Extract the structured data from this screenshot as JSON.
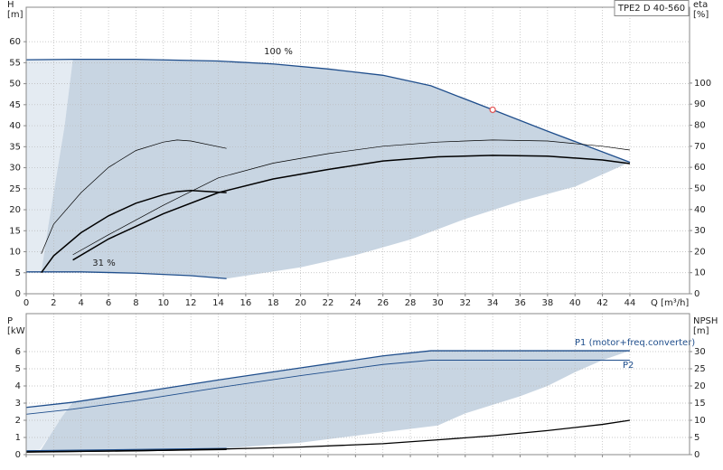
{
  "chart_data": [
    {
      "type": "line",
      "title": "TPE2 D 40-560",
      "xlabel": "Q [m³/h]",
      "ylabel": "H",
      "yunit": "[m]",
      "y2label": "eta",
      "y2unit": "[%]",
      "xlim": [
        0,
        48.35
      ],
      "xticks": [
        0,
        2,
        4,
        6,
        8,
        10,
        12,
        14,
        16,
        18,
        20,
        22,
        24,
        26,
        28,
        30,
        32,
        34,
        36,
        38,
        40,
        42,
        44
      ],
      "ylim": [
        0,
        68.2
      ],
      "yticks": [
        0,
        5,
        10,
        15,
        20,
        25,
        30,
        35,
        40,
        45,
        50,
        55,
        60
      ],
      "y2lim": [
        0,
        136
      ],
      "y2ticks": [
        0,
        10,
        20,
        30,
        40,
        50,
        60,
        70,
        80,
        90,
        100
      ],
      "grid": true,
      "areas": [
        {
          "color": "#e4ebf2",
          "x": [
            0,
            3.4,
            2.8,
            2.2,
            1.6,
            1.1,
            0
          ],
          "values": [
            55.7,
            55.7,
            40,
            28,
            16,
            5.2,
            5.2
          ]
        },
        {
          "color": "#c8d5e2",
          "x": [
            3.4,
            8,
            14,
            18,
            22,
            26,
            29.5,
            34,
            38,
            44,
            40,
            36,
            32,
            28,
            24,
            20,
            14.6,
            12,
            8,
            4,
            1.1,
            1.6,
            2.2,
            2.8
          ],
          "values": [
            55.8,
            55.8,
            55.4,
            54.7,
            53.5,
            52,
            49.5,
            43.8,
            38.7,
            31.3,
            25.5,
            22,
            17.8,
            12.9,
            9.2,
            6.3,
            3.6,
            4.3,
            4.9,
            5.2,
            5.2,
            16,
            28,
            40
          ]
        }
      ],
      "series": [
        {
          "name": "100 %",
          "color": "#1f4e8c",
          "line_width": 1.3,
          "x": [
            0,
            3.4,
            8,
            14,
            18,
            22,
            26,
            29.5,
            34,
            38,
            44
          ],
          "values": [
            55.7,
            55.8,
            55.8,
            55.4,
            54.7,
            53.5,
            52,
            49.5,
            43.8,
            38.7,
            31.3
          ]
        },
        {
          "name": "31 %",
          "color": "#1f4e8c",
          "line_width": 1.3,
          "x": [
            0,
            1,
            4,
            8,
            12,
            14.6
          ],
          "values": [
            5.2,
            5.2,
            5.2,
            4.9,
            4.3,
            3.6
          ]
        },
        {
          "color": "#000000",
          "line_width": 0.7,
          "axis": "y2",
          "x": [
            1.1,
            2,
            4,
            6,
            8,
            10,
            11,
            12,
            14.6
          ],
          "values": [
            19,
            33,
            48,
            60,
            68,
            72,
            73,
            72.5,
            69
          ]
        },
        {
          "color": "#000000",
          "line_width": 1.5,
          "axis": "y2",
          "x": [
            1.1,
            2,
            4,
            6,
            8,
            10,
            11,
            12,
            14.6
          ],
          "values": [
            10,
            18,
            29,
            37,
            43,
            47,
            48.5,
            49,
            48
          ]
        },
        {
          "color": "#000000",
          "line_width": 0.7,
          "axis": "y2",
          "x": [
            3.4,
            6,
            10,
            14,
            18,
            22,
            26,
            30,
            34,
            38,
            42,
            44
          ],
          "values": [
            18.5,
            28,
            42,
            55,
            62,
            66.5,
            70,
            72,
            73,
            72.5,
            70,
            68.2
          ]
        },
        {
          "color": "#000000",
          "line_width": 1.5,
          "axis": "y2",
          "x": [
            3.4,
            6,
            10,
            14,
            18,
            22,
            26,
            30,
            34,
            38,
            42,
            44
          ],
          "values": [
            16,
            26,
            38,
            48,
            54.5,
            59,
            63,
            65,
            65.7,
            65.3,
            63.5,
            61.8
          ]
        }
      ],
      "marker": {
        "x": 34,
        "value": 43.8,
        "color": "#e05050"
      }
    },
    {
      "type": "line",
      "ylabel": "P",
      "yunit": "[kW]",
      "y2label": "NPSH",
      "y2unit": "[m]",
      "xlim": [
        0,
        48.35
      ],
      "ylim": [
        0,
        8.21
      ],
      "yticks": [
        0,
        1,
        2,
        3,
        4,
        5,
        6
      ],
      "y2lim": [
        0,
        41.05
      ],
      "y2ticks": [
        0,
        5,
        10,
        15,
        20,
        25,
        30
      ],
      "grid": true,
      "areas": [
        {
          "color": "#e4ebf2",
          "x": [
            0,
            3.4,
            2.6,
            1.8,
            1,
            0
          ],
          "values": [
            2.75,
            3.05,
            2.2,
            1.2,
            0.3,
            0.2
          ]
        },
        {
          "color": "#c8d5e2",
          "x": [
            3.4,
            8,
            14,
            20,
            26,
            29.5,
            44,
            42,
            40,
            38,
            36,
            34,
            32,
            30,
            26,
            20,
            14.6,
            8,
            1,
            1.8,
            2.6
          ],
          "values": [
            3.05,
            3.6,
            4.35,
            5.05,
            5.75,
            6.05,
            6.05,
            5.5,
            4.8,
            4.0,
            3.4,
            2.9,
            2.4,
            1.7,
            1.3,
            0.7,
            0.37,
            0.3,
            0.2,
            1.2,
            2.2
          ]
        }
      ],
      "series": [
        {
          "name": "P1 (motor+freq.converter)",
          "color": "#1f4e8c",
          "line_width": 1.3,
          "x": [
            0,
            3.4,
            8,
            14,
            20,
            26,
            29.5,
            44
          ],
          "values": [
            2.75,
            3.05,
            3.6,
            4.35,
            5.05,
            5.75,
            6.05,
            6.05
          ]
        },
        {
          "name": "P2",
          "color": "#1f4e8c",
          "line_width": 0.9,
          "x": [
            0,
            3.4,
            8,
            14,
            20,
            26,
            29.5,
            44
          ],
          "values": [
            2.35,
            2.65,
            3.15,
            3.9,
            4.6,
            5.25,
            5.5,
            5.5
          ]
        },
        {
          "color": "#1f4e8c",
          "line_width": 1.3,
          "x": [
            0,
            14.6
          ],
          "values": [
            0.22,
            0.36
          ]
        },
        {
          "color": "#000000",
          "line_width": 1.5,
          "x": [
            0,
            14.6
          ],
          "values": [
            0.15,
            0.3
          ]
        },
        {
          "color": "#000000",
          "line_width": 1.3,
          "axis": "y2",
          "x": [
            0,
            8,
            14,
            20,
            26,
            30,
            34,
            38,
            42,
            44
          ],
          "values": [
            0.8,
            1.1,
            1.6,
            2.2,
            3.2,
            4.3,
            5.5,
            7,
            8.8,
            10
          ]
        }
      ]
    }
  ]
}
